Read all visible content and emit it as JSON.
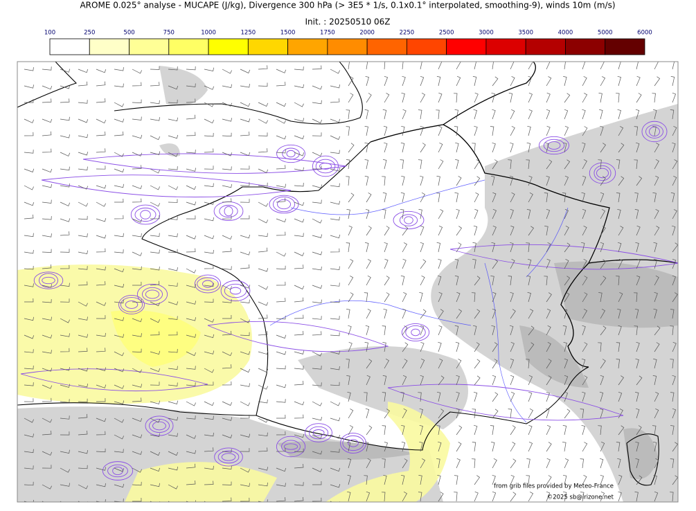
{
  "header": {
    "title": "AROME 0.025° analyse - MUCAPE (J/kg), Divergence 300 hPa (> 3E5 * 1/s, 0.1x0.1° interpolated, smoothing-9), winds 10m (m/s)",
    "init": "Init. : 20250510 06Z"
  },
  "colorbar": {
    "levels": [
      100,
      250,
      500,
      750,
      1000,
      1250,
      1500,
      1750,
      2000,
      2250,
      2500,
      3000,
      3500,
      4000,
      5000,
      6000
    ],
    "colors": [
      "#ffffff",
      "#ffffc8",
      "#ffff96",
      "#ffff64",
      "#ffff00",
      "#ffd700",
      "#ffa500",
      "#ff8c00",
      "#ff6400",
      "#ff4500",
      "#ff0000",
      "#dc0000",
      "#b40000",
      "#8c0000",
      "#640000"
    ]
  },
  "credits": {
    "source": "from grib files provided by Meteo-France",
    "copyright": "©2025 sb@irizone.net"
  }
}
